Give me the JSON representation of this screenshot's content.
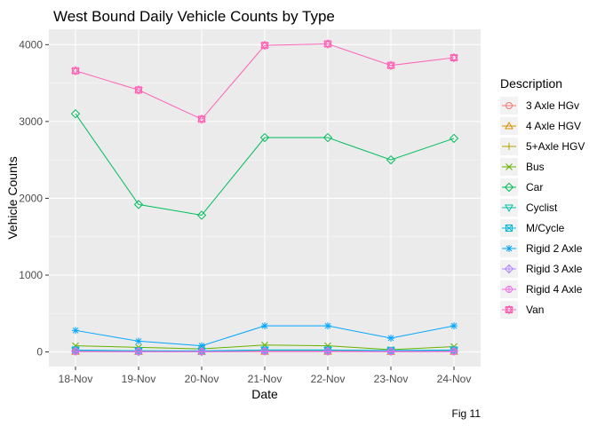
{
  "chart_data": {
    "type": "line",
    "title": "West Bound Daily Vehicle Counts by Type",
    "xlabel": "Date",
    "ylabel": "Vehicle Counts",
    "caption": "Fig 11",
    "categories": [
      "18-Nov",
      "19-Nov",
      "20-Nov",
      "21-Nov",
      "22-Nov",
      "23-Nov",
      "24-Nov"
    ],
    "yticks": [
      0,
      1000,
      2000,
      3000,
      4000
    ],
    "ylim": [
      -190,
      4200
    ],
    "grid": true,
    "legend_title": "Description",
    "legend_position": "right",
    "series": [
      {
        "name": "3 Axle HGv",
        "color": "#F8766D",
        "marker": "circle",
        "values": [
          10,
          5,
          5,
          10,
          10,
          8,
          10
        ]
      },
      {
        "name": "4 Axle HGV",
        "color": "#DB8E00",
        "marker": "triangle",
        "values": [
          5,
          3,
          3,
          5,
          5,
          4,
          5
        ]
      },
      {
        "name": "5+Axle HGV",
        "color": "#AEA200",
        "marker": "plus",
        "values": [
          15,
          10,
          10,
          15,
          15,
          10,
          15
        ]
      },
      {
        "name": "Bus",
        "color": "#64B200",
        "marker": "cross",
        "values": [
          80,
          60,
          40,
          90,
          80,
          30,
          70
        ]
      },
      {
        "name": "Car",
        "color": "#00BD5C",
        "marker": "diamond",
        "values": [
          3100,
          1920,
          1780,
          2790,
          2790,
          2500,
          2780
        ]
      },
      {
        "name": "Cyclist",
        "color": "#00C1A7",
        "marker": "triangle-down",
        "values": [
          20,
          15,
          10,
          25,
          25,
          15,
          20
        ]
      },
      {
        "name": "M/Cycle",
        "color": "#00BADE",
        "marker": "square-cross",
        "values": [
          25,
          15,
          15,
          25,
          25,
          20,
          25
        ]
      },
      {
        "name": "Rigid 2 Axle",
        "color": "#00A6FF",
        "marker": "asterisk",
        "values": [
          280,
          140,
          80,
          340,
          340,
          180,
          340
        ]
      },
      {
        "name": "Rigid 3 Axle",
        "color": "#B385FF",
        "marker": "diamond-plus",
        "values": [
          10,
          5,
          5,
          10,
          10,
          8,
          10
        ]
      },
      {
        "name": "Rigid 4 Axle",
        "color": "#EF67EB",
        "marker": "circle-plus",
        "values": [
          5,
          3,
          3,
          5,
          5,
          4,
          5
        ]
      },
      {
        "name": "Van",
        "color": "#FF63B6",
        "marker": "square-x",
        "values": [
          3660,
          3410,
          3030,
          3990,
          4010,
          3730,
          3830
        ]
      }
    ]
  }
}
